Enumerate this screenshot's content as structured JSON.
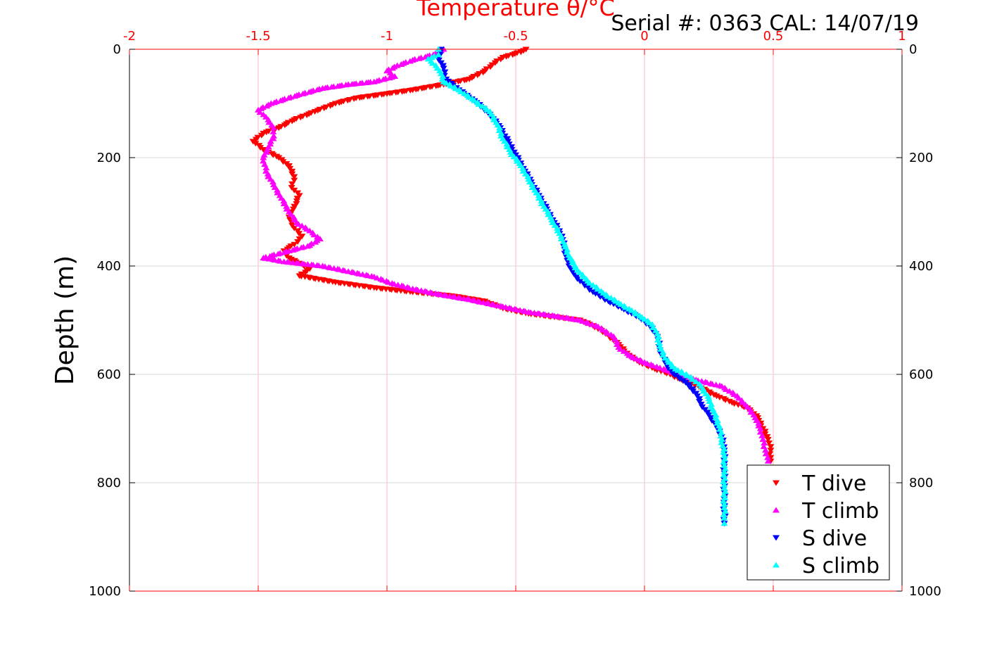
{
  "chart_data": {
    "type": "scatter",
    "title": "Temperature θ/°C",
    "annotation": "Serial #: 0363  CAL: 14/07/19",
    "xlabel": "Temperature θ/°C",
    "ylabel": "Depth (m)",
    "xlim": [
      -2,
      1
    ],
    "ylim": [
      0,
      1000
    ],
    "y_reversed": true,
    "x_ticks": [
      "-2",
      "-1.5",
      "-1",
      "-0.5",
      "0",
      "0.5",
      "1"
    ],
    "y_ticks": [
      "0",
      "200",
      "400",
      "600",
      "800",
      "1000"
    ],
    "grid": true,
    "legend_position": "bottom-right",
    "colors": {
      "axis_top": "#ff0000",
      "axis_other": "#000000",
      "grid_x": "#ffb6c1",
      "grid_y": "#d9d9d9"
    },
    "series": [
      {
        "name": "T dive",
        "marker": "triangle-down",
        "color": "#ff0000",
        "points": [
          [
            -0.46,
            0
          ],
          [
            -0.48,
            5
          ],
          [
            -0.55,
            15
          ],
          [
            -0.58,
            25
          ],
          [
            -0.62,
            40
          ],
          [
            -0.68,
            55
          ],
          [
            -0.78,
            65
          ],
          [
            -0.9,
            75
          ],
          [
            -1.0,
            82
          ],
          [
            -1.12,
            90
          ],
          [
            -1.2,
            100
          ],
          [
            -1.28,
            115
          ],
          [
            -1.36,
            130
          ],
          [
            -1.42,
            145
          ],
          [
            -1.48,
            155
          ],
          [
            -1.52,
            170
          ],
          [
            -1.48,
            185
          ],
          [
            -1.42,
            200
          ],
          [
            -1.38,
            215
          ],
          [
            -1.36,
            235
          ],
          [
            -1.37,
            255
          ],
          [
            -1.34,
            270
          ],
          [
            -1.36,
            290
          ],
          [
            -1.38,
            310
          ],
          [
            -1.36,
            330
          ],
          [
            -1.33,
            345
          ],
          [
            -1.36,
            360
          ],
          [
            -1.4,
            372
          ],
          [
            -1.38,
            385
          ],
          [
            -1.34,
            395
          ],
          [
            -1.3,
            405
          ],
          [
            -1.34,
            418
          ],
          [
            -1.2,
            430
          ],
          [
            -1.05,
            440
          ],
          [
            -0.9,
            448
          ],
          [
            -0.75,
            455
          ],
          [
            -0.62,
            465
          ],
          [
            -0.55,
            478
          ],
          [
            -0.45,
            488
          ],
          [
            -0.35,
            494
          ],
          [
            -0.25,
            500
          ],
          [
            -0.2,
            510
          ],
          [
            -0.15,
            525
          ],
          [
            -0.1,
            545
          ],
          [
            -0.06,
            565
          ],
          [
            -0.02,
            578
          ],
          [
            0.04,
            590
          ],
          [
            0.1,
            600
          ],
          [
            0.15,
            612
          ],
          [
            0.22,
            625
          ],
          [
            0.28,
            640
          ],
          [
            0.34,
            652
          ],
          [
            0.4,
            662
          ],
          [
            0.44,
            680
          ],
          [
            0.46,
            700
          ],
          [
            0.48,
            720
          ],
          [
            0.49,
            740
          ],
          [
            0.49,
            760
          ]
        ]
      },
      {
        "name": "T climb",
        "marker": "triangle-up",
        "color": "#ff00ff",
        "points": [
          [
            -0.78,
            0
          ],
          [
            -0.82,
            10
          ],
          [
            -0.9,
            20
          ],
          [
            -0.96,
            30
          ],
          [
            -1.0,
            40
          ],
          [
            -0.97,
            50
          ],
          [
            -1.05,
            60
          ],
          [
            -1.15,
            65
          ],
          [
            -1.25,
            72
          ],
          [
            -1.35,
            85
          ],
          [
            -1.45,
            100
          ],
          [
            -1.5,
            112
          ],
          [
            -1.47,
            125
          ],
          [
            -1.44,
            145
          ],
          [
            -1.44,
            160
          ],
          [
            -1.46,
            180
          ],
          [
            -1.48,
            200
          ],
          [
            -1.47,
            225
          ],
          [
            -1.44,
            250
          ],
          [
            -1.41,
            275
          ],
          [
            -1.38,
            300
          ],
          [
            -1.35,
            320
          ],
          [
            -1.3,
            335
          ],
          [
            -1.26,
            350
          ],
          [
            -1.3,
            362
          ],
          [
            -1.38,
            372
          ],
          [
            -1.48,
            385
          ],
          [
            -1.4,
            392
          ],
          [
            -1.25,
            400
          ],
          [
            -1.15,
            410
          ],
          [
            -1.05,
            420
          ],
          [
            -0.98,
            432
          ],
          [
            -0.9,
            442
          ],
          [
            -0.8,
            452
          ],
          [
            -0.68,
            462
          ],
          [
            -0.55,
            475
          ],
          [
            -0.45,
            485
          ],
          [
            -0.35,
            492
          ],
          [
            -0.25,
            500
          ],
          [
            -0.18,
            512
          ],
          [
            -0.12,
            530
          ],
          [
            -0.1,
            550
          ],
          [
            -0.06,
            565
          ],
          [
            0.0,
            578
          ],
          [
            0.06,
            588
          ],
          [
            0.12,
            598
          ],
          [
            0.2,
            610
          ],
          [
            0.3,
            622
          ],
          [
            0.36,
            640
          ],
          [
            0.4,
            660
          ],
          [
            0.43,
            680
          ],
          [
            0.45,
            700
          ],
          [
            0.46,
            720
          ],
          [
            0.47,
            740
          ],
          [
            0.48,
            760
          ]
        ]
      },
      {
        "name": "S dive",
        "marker": "triangle-down",
        "color": "#0000ff",
        "points": [
          [
            -0.79,
            0
          ],
          [
            -0.8,
            15
          ],
          [
            -0.78,
            35
          ],
          [
            -0.77,
            55
          ],
          [
            -0.72,
            75
          ],
          [
            -0.66,
            95
          ],
          [
            -0.6,
            120
          ],
          [
            -0.56,
            145
          ],
          [
            -0.53,
            170
          ],
          [
            -0.5,
            195
          ],
          [
            -0.47,
            220
          ],
          [
            -0.44,
            245
          ],
          [
            -0.41,
            270
          ],
          [
            -0.38,
            295
          ],
          [
            -0.35,
            320
          ],
          [
            -0.32,
            345
          ],
          [
            -0.31,
            370
          ],
          [
            -0.3,
            390
          ],
          [
            -0.28,
            410
          ],
          [
            -0.25,
            428
          ],
          [
            -0.2,
            448
          ],
          [
            -0.14,
            465
          ],
          [
            -0.08,
            480
          ],
          [
            -0.02,
            495
          ],
          [
            0.02,
            510
          ],
          [
            0.05,
            530
          ],
          [
            0.06,
            555
          ],
          [
            0.08,
            578
          ],
          [
            0.11,
            598
          ],
          [
            0.16,
            615
          ],
          [
            0.2,
            635
          ],
          [
            0.22,
            655
          ],
          [
            0.25,
            675
          ],
          [
            0.28,
            695
          ],
          [
            0.3,
            715
          ],
          [
            0.31,
            740
          ],
          [
            0.31,
            770
          ],
          [
            0.31,
            800
          ],
          [
            0.31,
            830
          ],
          [
            0.31,
            855
          ],
          [
            0.31,
            875
          ]
        ]
      },
      {
        "name": "S climb",
        "marker": "triangle-up",
        "color": "#00ffff",
        "points": [
          [
            -0.8,
            0
          ],
          [
            -0.8,
            10
          ],
          [
            -0.84,
            18
          ],
          [
            -0.81,
            30
          ],
          [
            -0.79,
            45
          ],
          [
            -0.78,
            60
          ],
          [
            -0.72,
            75
          ],
          [
            -0.66,
            95
          ],
          [
            -0.6,
            115
          ],
          [
            -0.57,
            140
          ],
          [
            -0.55,
            165
          ],
          [
            -0.52,
            190
          ],
          [
            -0.48,
            215
          ],
          [
            -0.45,
            240
          ],
          [
            -0.42,
            265
          ],
          [
            -0.39,
            290
          ],
          [
            -0.36,
            315
          ],
          [
            -0.33,
            340
          ],
          [
            -0.31,
            360
          ],
          [
            -0.29,
            385
          ],
          [
            -0.26,
            408
          ],
          [
            -0.22,
            428
          ],
          [
            -0.16,
            450
          ],
          [
            -0.1,
            468
          ],
          [
            -0.05,
            482
          ],
          [
            -0.01,
            495
          ],
          [
            0.03,
            508
          ],
          [
            0.05,
            525
          ],
          [
            0.06,
            548
          ],
          [
            0.08,
            570
          ],
          [
            0.12,
            590
          ],
          [
            0.18,
            605
          ],
          [
            0.22,
            622
          ],
          [
            0.25,
            645
          ],
          [
            0.27,
            670
          ],
          [
            0.29,
            695
          ],
          [
            0.3,
            720
          ],
          [
            0.31,
            750
          ],
          [
            0.31,
            780
          ],
          [
            0.31,
            810
          ],
          [
            0.31,
            840
          ],
          [
            0.31,
            865
          ],
          [
            0.31,
            875
          ]
        ]
      }
    ]
  }
}
